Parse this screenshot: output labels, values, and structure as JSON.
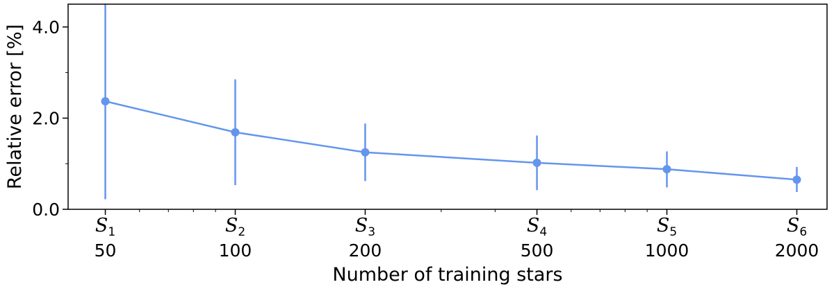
{
  "chart_data": {
    "type": "line",
    "x_scale": "log",
    "xlim": [
      41,
      2350
    ],
    "ylim": [
      0,
      4.5
    ],
    "x": [
      50,
      100,
      200,
      500,
      1000,
      2000
    ],
    "x_tick_labels": [
      "50",
      "100",
      "200",
      "500",
      "1000",
      "2000"
    ],
    "set_labels": [
      {
        "base": "S",
        "sub": "1"
      },
      {
        "base": "S",
        "sub": "2"
      },
      {
        "base": "S",
        "sub": "3"
      },
      {
        "base": "S",
        "sub": "4"
      },
      {
        "base": "S",
        "sub": "5"
      },
      {
        "base": "S",
        "sub": "6"
      }
    ],
    "y_ticks": [
      0.0,
      2.0,
      4.0
    ],
    "y_tick_labels": [
      "0.0",
      "2.0",
      "4.0"
    ],
    "series": [
      {
        "values": [
          2.37,
          1.69,
          1.25,
          1.02,
          0.88,
          0.65
        ],
        "error_low": [
          0.22,
          0.53,
          0.62,
          0.42,
          0.48,
          0.38
        ],
        "error_high": [
          4.5,
          2.85,
          1.88,
          1.62,
          1.27,
          0.93
        ],
        "color": "#6495ED"
      }
    ],
    "xlabel": "Number of training stars",
    "ylabel": "Relative error [%]",
    "grid": false
  }
}
